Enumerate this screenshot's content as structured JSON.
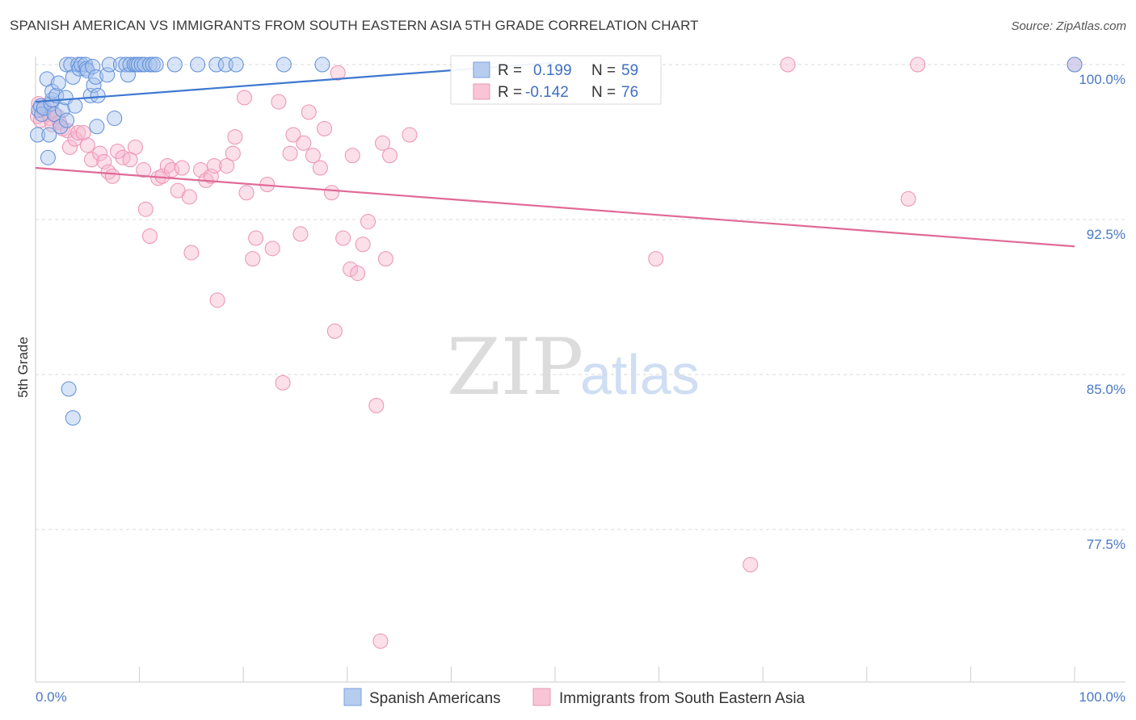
{
  "title": "SPANISH AMERICAN VS IMMIGRANTS FROM SOUTH EASTERN ASIA 5TH GRADE CORRELATION CHART",
  "source": "Source: ZipAtlas.com",
  "watermark": {
    "zip": "ZIP",
    "atlas": "atlas"
  },
  "legend_top": {
    "series1": {
      "r_label": "R =",
      "r_value": "0.199",
      "n_label": "N =",
      "n_value": "59"
    },
    "series2": {
      "r_label": "R =",
      "r_value": "-0.142",
      "n_label": "N =",
      "n_value": "76"
    }
  },
  "chart_data": {
    "type": "scatter",
    "title": "SPANISH AMERICAN VS IMMIGRANTS FROM SOUTH EASTERN ASIA 5TH GRADE CORRELATION CHART",
    "xlabel": "",
    "ylabel": "5th Grade",
    "xlim": [
      0,
      100
    ],
    "ylim": [
      70.5,
      101.5
    ],
    "x_tick_labels": [
      "0.0%",
      "100.0%"
    ],
    "y_ticks": [
      100.0,
      92.5,
      85.0,
      77.5
    ],
    "y_tick_labels": [
      "100.0%",
      "92.5%",
      "85.0%",
      "77.5%"
    ],
    "grid": true,
    "legend_position": "bottom-center",
    "colors": {
      "spanish": "#4a7fd4",
      "asia": "#e8709a"
    },
    "series": [
      {
        "name": "Spanish Americans",
        "color": "#4a7fd4",
        "r": 0.199,
        "n": 59,
        "trend": {
          "x": [
            0,
            50
          ],
          "y": [
            98.2,
            100.1
          ]
        },
        "points": [
          [
            0.2,
            96.6
          ],
          [
            0.3,
            97.8
          ],
          [
            0.5,
            98.0
          ],
          [
            0.6,
            97.6
          ],
          [
            0.8,
            97.9
          ],
          [
            1.1,
            99.3
          ],
          [
            1.2,
            95.5
          ],
          [
            1.3,
            96.6
          ],
          [
            1.5,
            98.1
          ],
          [
            1.6,
            98.3
          ],
          [
            1.6,
            98.7
          ],
          [
            1.8,
            97.6
          ],
          [
            2.0,
            98.5
          ],
          [
            2.2,
            99.1
          ],
          [
            2.4,
            97.0
          ],
          [
            2.6,
            97.8
          ],
          [
            2.9,
            98.4
          ],
          [
            3.0,
            97.3
          ],
          [
            3.0,
            100.0
          ],
          [
            3.2,
            84.3
          ],
          [
            3.4,
            100.0
          ],
          [
            3.6,
            99.4
          ],
          [
            3.6,
            82.9
          ],
          [
            3.8,
            98.0
          ],
          [
            4.1,
            100.0
          ],
          [
            4.2,
            99.8
          ],
          [
            4.4,
            100.0
          ],
          [
            4.8,
            100.0
          ],
          [
            4.9,
            99.8
          ],
          [
            5.0,
            99.7
          ],
          [
            5.3,
            98.5
          ],
          [
            5.5,
            99.9
          ],
          [
            5.6,
            99.0
          ],
          [
            5.8,
            99.4
          ],
          [
            5.9,
            97.0
          ],
          [
            6.0,
            98.5
          ],
          [
            6.9,
            99.5
          ],
          [
            7.1,
            100.0
          ],
          [
            7.6,
            97.4
          ],
          [
            8.2,
            100.0
          ],
          [
            8.7,
            100.0
          ],
          [
            8.9,
            99.5
          ],
          [
            9.1,
            100.0
          ],
          [
            9.5,
            100.0
          ],
          [
            9.7,
            100.0
          ],
          [
            9.9,
            100.0
          ],
          [
            10.2,
            100.0
          ],
          [
            10.5,
            100.0
          ],
          [
            11.0,
            100.0
          ],
          [
            11.3,
            100.0
          ],
          [
            11.6,
            100.0
          ],
          [
            13.4,
            100.0
          ],
          [
            15.6,
            100.0
          ],
          [
            17.4,
            100.0
          ],
          [
            18.3,
            100.0
          ],
          [
            19.3,
            100.0
          ],
          [
            23.9,
            100.0
          ],
          [
            27.6,
            100.0
          ],
          [
            100.0,
            100.0
          ]
        ]
      },
      {
        "name": "Immigrants from South Eastern Asia",
        "color": "#e8709a",
        "r": -0.142,
        "n": 76,
        "trend": {
          "x": [
            0,
            100
          ],
          "y": [
            95.0,
            91.2
          ]
        },
        "points": [
          [
            0.2,
            97.5
          ],
          [
            0.3,
            98.1
          ],
          [
            0.5,
            97.3
          ],
          [
            0.7,
            97.8
          ],
          [
            1.1,
            98.0
          ],
          [
            1.3,
            97.6
          ],
          [
            1.4,
            97.4
          ],
          [
            1.6,
            97.1
          ],
          [
            1.8,
            97.6
          ],
          [
            2.1,
            97.5
          ],
          [
            2.3,
            97.2
          ],
          [
            2.6,
            96.9
          ],
          [
            3.1,
            96.8
          ],
          [
            3.3,
            96.0
          ],
          [
            3.8,
            96.4
          ],
          [
            4.1,
            96.7
          ],
          [
            4.6,
            96.7
          ],
          [
            5.0,
            96.1
          ],
          [
            5.4,
            95.4
          ],
          [
            6.2,
            95.7
          ],
          [
            6.6,
            95.3
          ],
          [
            7.0,
            94.8
          ],
          [
            7.4,
            94.6
          ],
          [
            7.9,
            95.8
          ],
          [
            8.4,
            95.5
          ],
          [
            9.1,
            95.4
          ],
          [
            9.6,
            96.0
          ],
          [
            10.4,
            94.9
          ],
          [
            10.6,
            93.0
          ],
          [
            11.0,
            91.7
          ],
          [
            11.8,
            94.5
          ],
          [
            12.2,
            94.6
          ],
          [
            12.7,
            95.1
          ],
          [
            13.1,
            94.9
          ],
          [
            13.7,
            93.9
          ],
          [
            14.1,
            95.0
          ],
          [
            14.8,
            93.6
          ],
          [
            15.0,
            90.9
          ],
          [
            15.9,
            94.9
          ],
          [
            16.4,
            94.4
          ],
          [
            16.9,
            94.6
          ],
          [
            17.2,
            95.1
          ],
          [
            17.5,
            88.6
          ],
          [
            18.4,
            95.1
          ],
          [
            19.0,
            95.7
          ],
          [
            19.2,
            96.5
          ],
          [
            20.1,
            98.4
          ],
          [
            20.3,
            93.8
          ],
          [
            20.9,
            90.6
          ],
          [
            21.2,
            91.6
          ],
          [
            22.3,
            94.2
          ],
          [
            22.8,
            91.1
          ],
          [
            23.4,
            98.2
          ],
          [
            23.8,
            84.6
          ],
          [
            24.5,
            95.7
          ],
          [
            24.8,
            96.6
          ],
          [
            25.5,
            91.8
          ],
          [
            25.8,
            96.2
          ],
          [
            26.3,
            97.7
          ],
          [
            26.7,
            95.6
          ],
          [
            27.4,
            95.0
          ],
          [
            27.8,
            96.9
          ],
          [
            28.5,
            93.8
          ],
          [
            28.8,
            87.1
          ],
          [
            29.1,
            99.6
          ],
          [
            29.6,
            91.6
          ],
          [
            30.3,
            90.1
          ],
          [
            30.5,
            95.6
          ],
          [
            31.0,
            89.9
          ],
          [
            31.5,
            91.3
          ],
          [
            32.0,
            92.4
          ],
          [
            32.8,
            83.5
          ],
          [
            33.4,
            96.2
          ],
          [
            33.7,
            90.6
          ],
          [
            34.1,
            95.6
          ],
          [
            36.0,
            96.6
          ]
        ],
        "points_extra": [
          [
            33.2,
            72.1
          ],
          [
            59.7,
            90.6
          ],
          [
            68.8,
            75.8
          ],
          [
            72.4,
            100.0
          ],
          [
            84.0,
            93.5
          ],
          [
            84.9,
            100.0
          ],
          [
            100.0,
            100.0
          ]
        ]
      }
    ],
    "legend_labels": [
      "Spanish Americans",
      "Immigrants from South Eastern Asia"
    ]
  }
}
